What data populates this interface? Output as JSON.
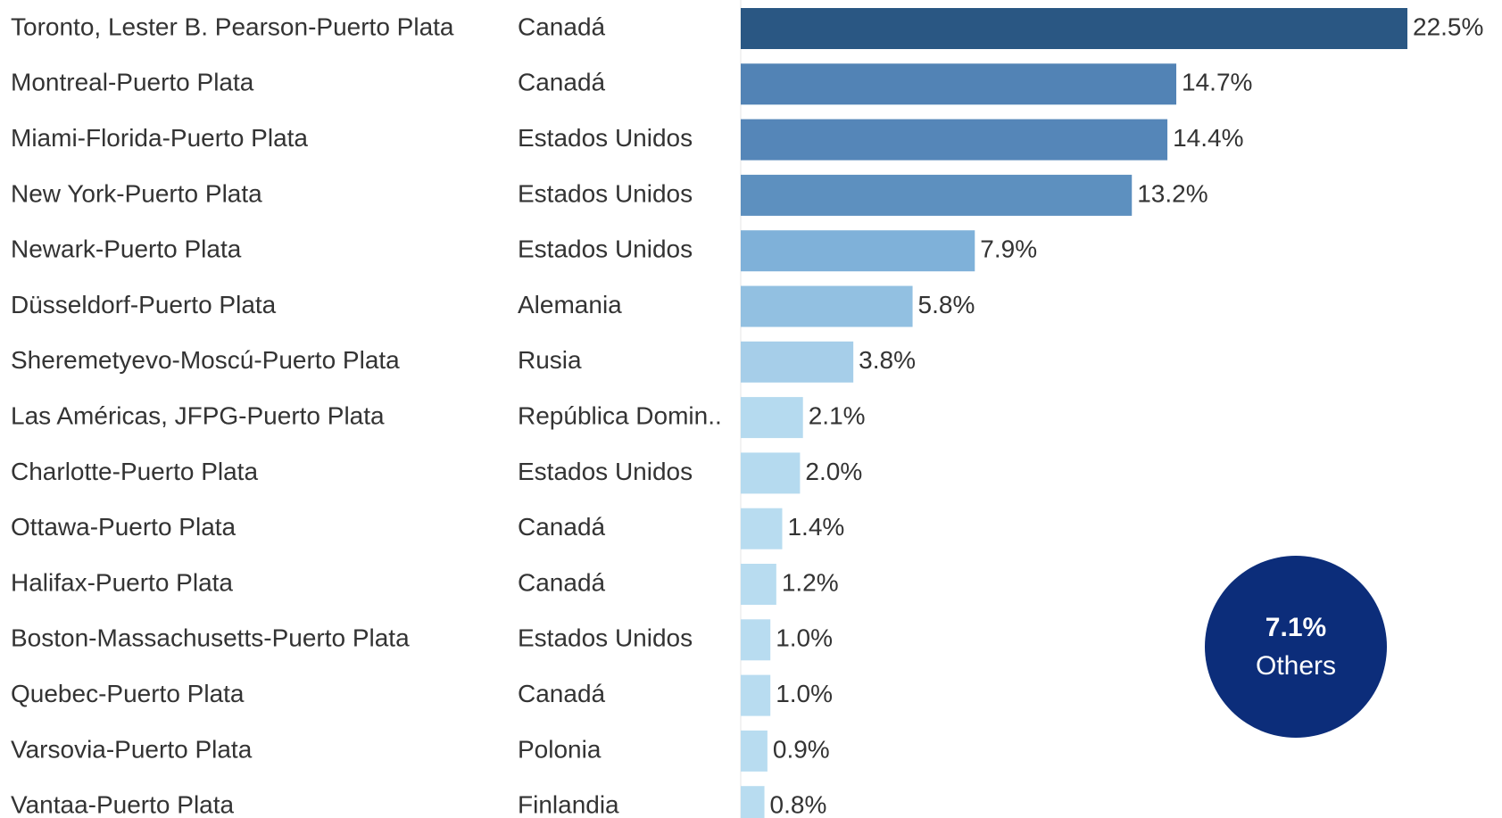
{
  "chart_data": {
    "type": "bar",
    "orientation": "horizontal",
    "categories": [
      "Toronto, Lester B. Pearson-Puerto Plata",
      "Montreal-Puerto Plata",
      "Miami-Florida-Puerto Plata",
      "New York-Puerto Plata",
      "Newark-Puerto Plata",
      "Düsseldorf-Puerto Plata",
      "Sheremetyevo-Moscú-Puerto Plata",
      "Las Américas, JFPG-Puerto Plata",
      "Charlotte-Puerto Plata",
      "Ottawa-Puerto Plata",
      "Halifax-Puerto Plata",
      "Boston-Massachusetts-Puerto Plata",
      "Quebec-Puerto Plata",
      "Varsovia-Puerto Plata",
      "Vantaa-Puerto Plata"
    ],
    "countries": [
      "Canadá",
      "Canadá",
      "Estados Unidos",
      "Estados Unidos",
      "Estados Unidos",
      "Alemania",
      "Rusia",
      "República Domin..",
      "Estados Unidos",
      "Canadá",
      "Canadá",
      "Estados Unidos",
      "Canadá",
      "Polonia",
      "Finlandia"
    ],
    "values": [
      22.5,
      14.7,
      14.4,
      13.2,
      7.9,
      5.8,
      3.8,
      2.1,
      2.0,
      1.4,
      1.2,
      1.0,
      1.0,
      0.9,
      0.8
    ],
    "value_labels": [
      "22.5%",
      "14.7%",
      "14.4%",
      "13.2%",
      "7.9%",
      "5.8%",
      "3.8%",
      "2.1%",
      "2.0%",
      "1.4%",
      "1.2%",
      "1.0%",
      "1.0%",
      "0.9%",
      "0.8%"
    ],
    "colors": [
      "#2a5783",
      "#5283b5",
      "#5586b8",
      "#5d90bf",
      "#7fb1d9",
      "#92c0e1",
      "#a6cee9",
      "#b5daef",
      "#b5daef",
      "#b8dcf0",
      "#b8dcf0",
      "#b8dcf0",
      "#b8dcf0",
      "#b8dcf0",
      "#b8dcf0"
    ],
    "others": {
      "value": 7.1,
      "value_label": "7.1%",
      "label": "Others",
      "color": "#0c2d7a"
    }
  }
}
